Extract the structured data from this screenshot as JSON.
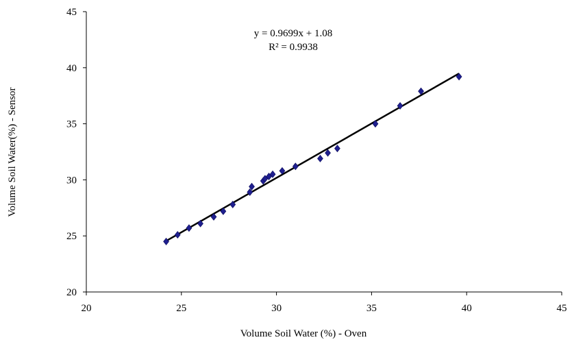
{
  "chart_data": {
    "type": "scatter",
    "title": "",
    "xlabel": "Volume  Soil Water (%) - Oven",
    "ylabel": "Volume Soil Water(%) - Sensor",
    "xlim": [
      20,
      45
    ],
    "ylim": [
      20,
      45
    ],
    "x_ticks": [
      "20",
      "25",
      "30",
      "35",
      "40",
      "45"
    ],
    "y_ticks": [
      "20",
      "25",
      "30",
      "35",
      "40",
      "45"
    ],
    "grid": false,
    "legend": "none",
    "marker_color": "#1f1f8f",
    "line_color": "#000000",
    "points": [
      {
        "x": 24.2,
        "y": 24.5
      },
      {
        "x": 24.8,
        "y": 25.1
      },
      {
        "x": 25.4,
        "y": 25.7
      },
      {
        "x": 26.0,
        "y": 26.1
      },
      {
        "x": 26.7,
        "y": 26.7
      },
      {
        "x": 27.2,
        "y": 27.2
      },
      {
        "x": 27.7,
        "y": 27.8
      },
      {
        "x": 28.6,
        "y": 28.9
      },
      {
        "x": 28.7,
        "y": 29.4
      },
      {
        "x": 29.3,
        "y": 29.9
      },
      {
        "x": 29.4,
        "y": 30.1
      },
      {
        "x": 29.6,
        "y": 30.3
      },
      {
        "x": 29.8,
        "y": 30.5
      },
      {
        "x": 30.3,
        "y": 30.8
      },
      {
        "x": 31.0,
        "y": 31.2
      },
      {
        "x": 32.3,
        "y": 31.9
      },
      {
        "x": 32.7,
        "y": 32.4
      },
      {
        "x": 33.2,
        "y": 32.8
      },
      {
        "x": 35.2,
        "y": 35.0
      },
      {
        "x": 36.5,
        "y": 36.6
      },
      {
        "x": 37.6,
        "y": 37.9
      },
      {
        "x": 39.6,
        "y": 39.2
      }
    ],
    "trendline": {
      "slope": 0.9699,
      "intercept": 1.08,
      "x_range": [
        24.2,
        39.6
      ],
      "equation": "y = 0.9699x + 1.08",
      "r_squared": "R² = 0.9938"
    }
  }
}
